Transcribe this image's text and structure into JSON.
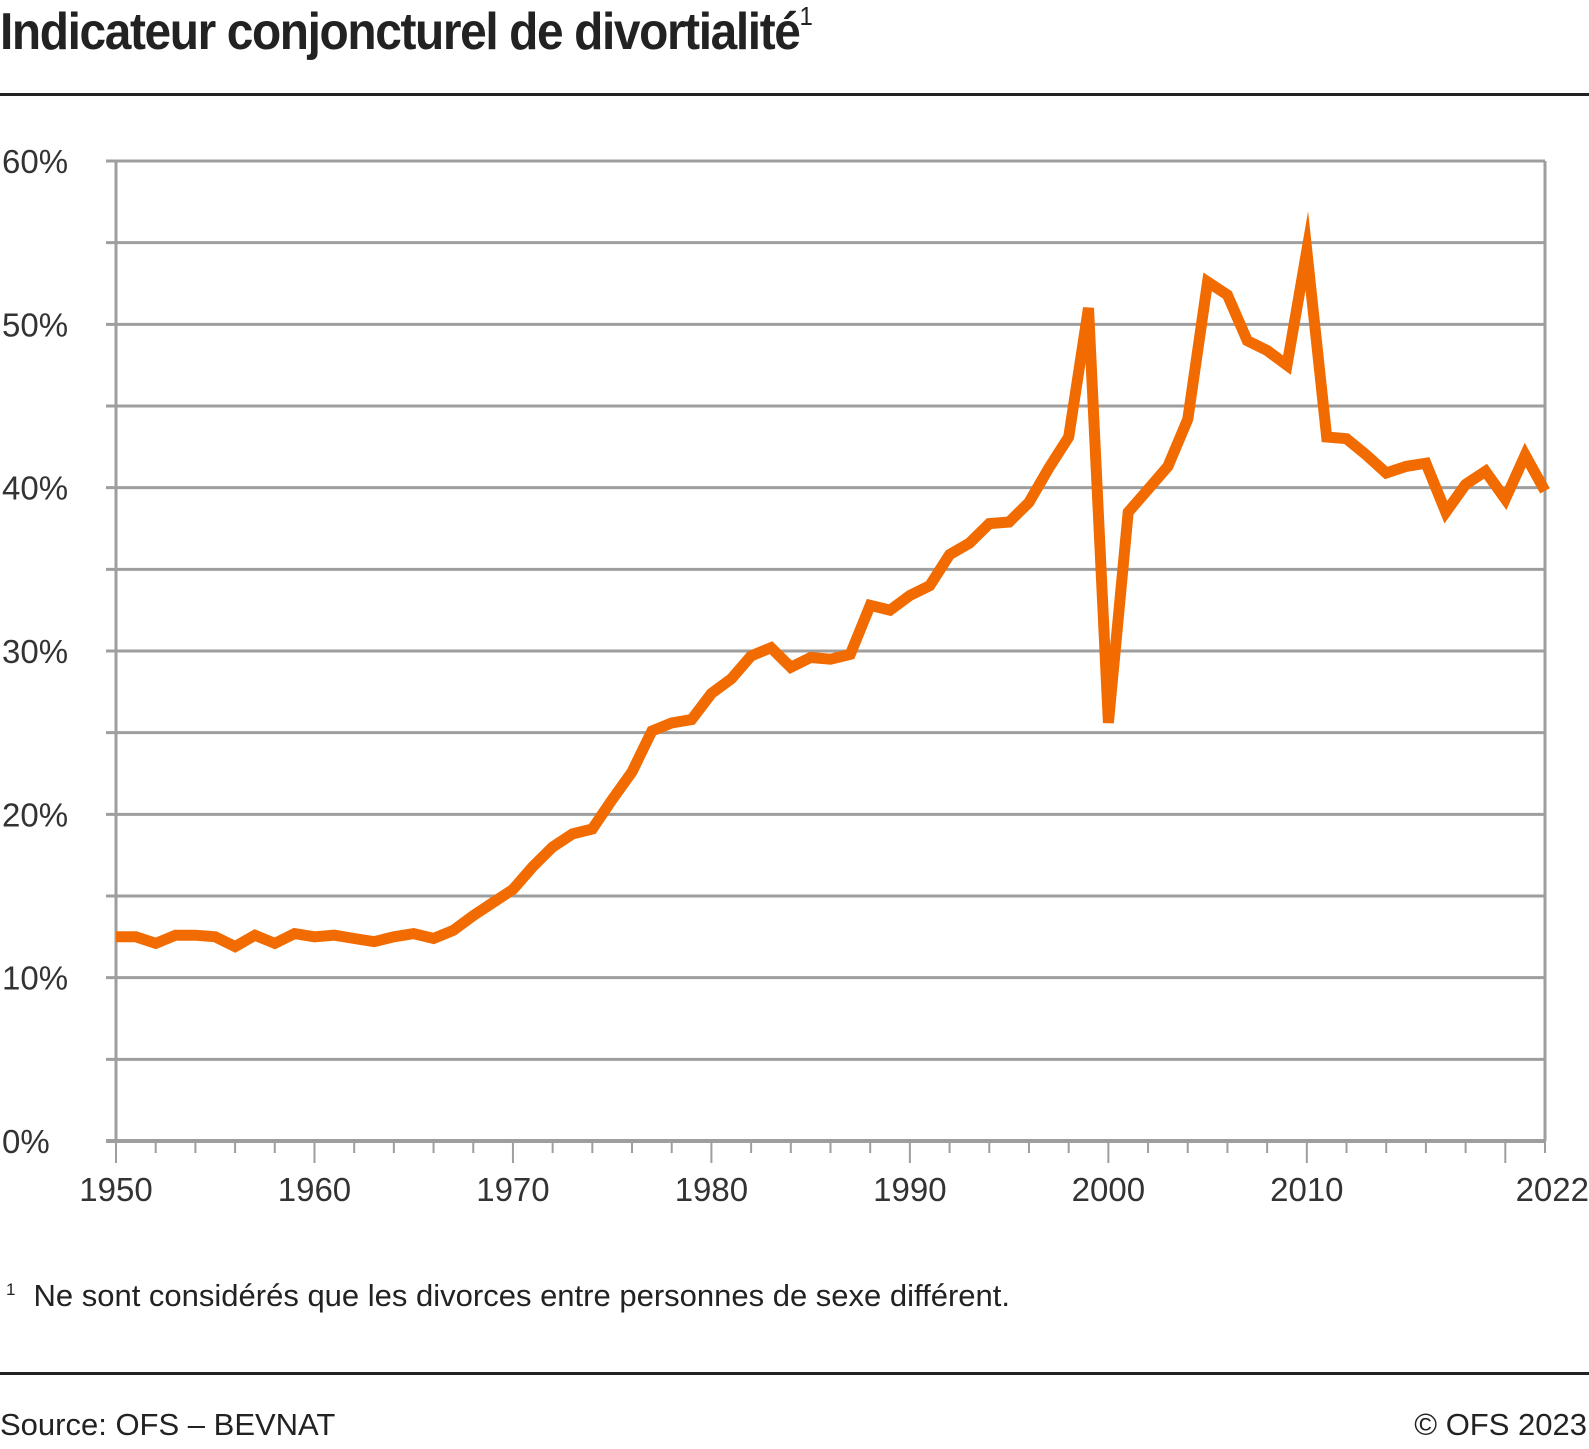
{
  "header": {
    "title": "Indicateur conjoncturel de divortialité",
    "title_footnote_mark": "1"
  },
  "footer": {
    "footnote_mark": "1",
    "footnote_text": "Ne sont considérés que les divorces entre personnes de sexe différent.",
    "source": "Source: OFS – BEVNAT",
    "copyright": "© OFS 2023"
  },
  "colors": {
    "series": "#F26B00",
    "grid": "#9E9E9E",
    "text": "#222222"
  },
  "chart_data": {
    "type": "line",
    "title": "Indicateur conjoncturel de divortialité",
    "xlabel": "",
    "ylabel": "",
    "xlim": [
      1950,
      2022
    ],
    "ylim": [
      0,
      60
    ],
    "grid": true,
    "legend": "none",
    "y_ticks": [
      {
        "value": 0,
        "label": "0%"
      },
      {
        "value": 10,
        "label": "10%"
      },
      {
        "value": 20,
        "label": "20%"
      },
      {
        "value": 30,
        "label": "30%"
      },
      {
        "value": 40,
        "label": "40%"
      },
      {
        "value": 50,
        "label": "50%"
      },
      {
        "value": 60,
        "label": "60%"
      }
    ],
    "y_minor_gridlines": [
      5,
      15,
      25,
      35,
      45,
      55
    ],
    "x_ticks": [
      {
        "value": 1950,
        "label": "1950"
      },
      {
        "value": 1960,
        "label": "1960"
      },
      {
        "value": 1970,
        "label": "1970"
      },
      {
        "value": 1980,
        "label": "1980"
      },
      {
        "value": 1990,
        "label": "1990"
      },
      {
        "value": 2000,
        "label": "2000"
      },
      {
        "value": 2010,
        "label": "2010"
      },
      {
        "value": 2022,
        "label": "2022"
      }
    ],
    "series": [
      {
        "name": "Indicateur conjoncturel de divortialité",
        "unit": "%",
        "x": [
          1950,
          1951,
          1952,
          1953,
          1954,
          1955,
          1956,
          1957,
          1958,
          1959,
          1960,
          1961,
          1962,
          1963,
          1964,
          1965,
          1966,
          1967,
          1968,
          1969,
          1970,
          1971,
          1972,
          1973,
          1974,
          1975,
          1976,
          1977,
          1978,
          1979,
          1980,
          1981,
          1982,
          1983,
          1984,
          1985,
          1986,
          1987,
          1988,
          1989,
          1990,
          1991,
          1992,
          1993,
          1994,
          1995,
          1996,
          1997,
          1998,
          1999,
          2000,
          2001,
          2002,
          2003,
          2004,
          2005,
          2006,
          2007,
          2008,
          2009,
          2010,
          2011,
          2012,
          2013,
          2014,
          2015,
          2016,
          2017,
          2018,
          2019,
          2020,
          2021,
          2022
        ],
        "values": [
          12.5,
          12.5,
          12.1,
          12.6,
          12.6,
          12.5,
          11.9,
          12.6,
          12.1,
          12.7,
          12.5,
          12.6,
          12.4,
          12.2,
          12.5,
          12.7,
          12.4,
          12.9,
          13.8,
          14.6,
          15.4,
          16.8,
          18.0,
          18.8,
          19.1,
          20.9,
          22.6,
          25.1,
          25.6,
          25.8,
          27.4,
          28.3,
          29.7,
          30.2,
          29.0,
          29.6,
          29.5,
          29.8,
          32.8,
          32.5,
          33.4,
          34.0,
          35.9,
          36.6,
          37.8,
          37.9,
          39.1,
          41.2,
          43.1,
          51.0,
          25.6,
          38.5,
          39.9,
          41.3,
          44.2,
          52.6,
          51.8,
          49.0,
          48.4,
          47.5,
          54.5,
          43.1,
          43.0,
          42.0,
          40.9,
          41.3,
          41.5,
          38.5,
          40.2,
          41.0,
          39.3,
          42.0,
          39.8
        ]
      }
    ]
  }
}
